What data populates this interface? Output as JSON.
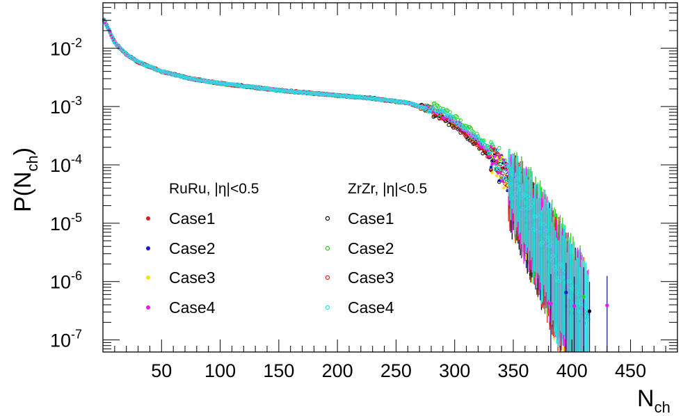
{
  "chart_data": {
    "type": "scatter",
    "title": "",
    "xlabel": {
      "base": "N",
      "sub": "ch"
    },
    "ylabel": {
      "prefix": "P(N",
      "sub": "ch",
      "suffix": ")"
    },
    "xlim": [
      0,
      490
    ],
    "ylim": [
      6.2e-08,
      0.06
    ],
    "y_scale": "log",
    "x_ticks": [
      "50",
      "100",
      "150",
      "200",
      "250",
      "300",
      "350",
      "400",
      "450"
    ],
    "y_ticks": [
      {
        "base": "10",
        "exp": "-2",
        "value": 0.01
      },
      {
        "base": "10",
        "exp": "-3",
        "value": 0.001
      },
      {
        "base": "10",
        "exp": "-4",
        "value": 0.0001
      },
      {
        "base": "10",
        "exp": "-5",
        "value": 1e-05
      },
      {
        "base": "10",
        "exp": "-6",
        "value": 1e-06
      },
      {
        "base": "10",
        "exp": "-7",
        "value": 1e-07
      }
    ],
    "grid": false,
    "legend_position": "lower-left",
    "legend_groups": [
      {
        "header": "RuRu, |η|<0.5",
        "entries": [
          {
            "label": "Case1",
            "color": "#e31a1c",
            "marker": "filled"
          },
          {
            "label": "Case2",
            "color": "#1a1ad6",
            "marker": "filled"
          },
          {
            "label": "Case3",
            "color": "#f2e400",
            "marker": "filled"
          },
          {
            "label": "Case4",
            "color": "#e81ae8",
            "marker": "filled"
          }
        ]
      },
      {
        "header": "ZrZr, |η|<0.5",
        "entries": [
          {
            "label": "Case1",
            "color": "#000000",
            "marker": "open"
          },
          {
            "label": "Case2",
            "color": "#22d11a",
            "marker": "open"
          },
          {
            "label": "Case3",
            "color": "#e31a1c",
            "marker": "open"
          },
          {
            "label": "Case4",
            "color": "#2ee0e0",
            "marker": "open"
          }
        ]
      }
    ],
    "shape": {
      "points": [
        [
          1,
          0.03
        ],
        [
          5,
          0.021
        ],
        [
          10,
          0.0125
        ],
        [
          20,
          0.0078
        ],
        [
          30,
          0.0058
        ],
        [
          50,
          0.004
        ],
        [
          75,
          0.003
        ],
        [
          100,
          0.0025
        ],
        [
          150,
          0.0019
        ],
        [
          200,
          0.00155
        ],
        [
          230,
          0.00138
        ],
        [
          260,
          0.00115
        ],
        [
          280,
          0.00088
        ],
        [
          300,
          0.00052
        ],
        [
          320,
          0.000245
        ],
        [
          340,
          8.5e-05
        ],
        [
          355,
          3.2e-05
        ],
        [
          370,
          9.3e-06
        ],
        [
          385,
          2.2e-06
        ],
        [
          400,
          5.5e-07
        ],
        [
          412,
          2.8e-07
        ]
      ],
      "series_factors": {
        "ruru_case1": 1.0,
        "ruru_case2": 1.03,
        "ruru_case3": 0.98,
        "ruru_case4": 1.05,
        "zrzr_case1": 0.88,
        "zrzr_case2": 1.25,
        "zrzr_case3": 0.95,
        "zrzr_case4": 1.1
      },
      "tail_outliers": [
        {
          "x": 382,
          "y": 4.2e-07,
          "color": "#e81ae8"
        },
        {
          "x": 395,
          "y": 6.5e-07,
          "color": "#1a1ad6"
        },
        {
          "x": 402,
          "y": 3.8e-07,
          "color": "#e81ae8"
        },
        {
          "x": 410,
          "y": 5.5e-07,
          "color": "#22d11a"
        },
        {
          "x": 415,
          "y": 3.1e-07,
          "color": "#000000"
        },
        {
          "x": 430,
          "y": 3.9e-07,
          "color": "#e81ae8"
        }
      ]
    }
  }
}
